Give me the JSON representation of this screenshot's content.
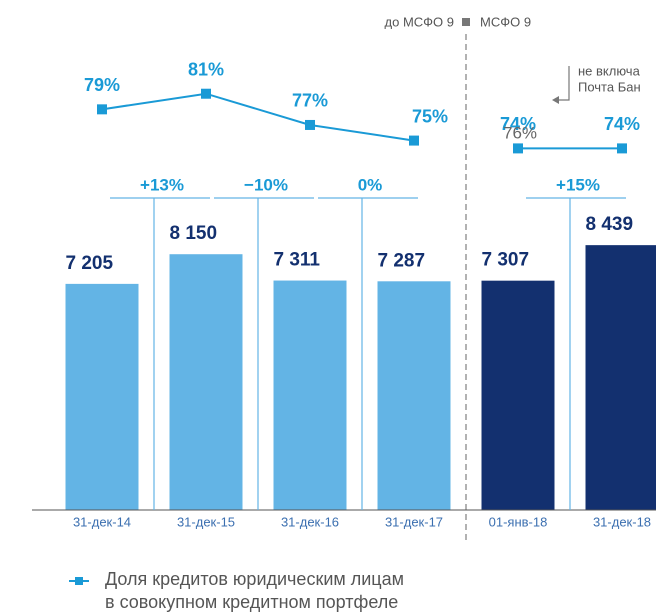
{
  "chart_data": {
    "type": "bar",
    "categories": [
      "31-дек-14",
      "31-дек-15",
      "31-дек-16",
      "31-дек-17",
      "01-янв-18",
      "31-дек-18"
    ],
    "values": [
      7205,
      8150,
      7311,
      7287,
      7307,
      8439
    ],
    "value_labels": [
      "7 205",
      "8 150",
      "7 311",
      "7 287",
      "7 307",
      "8 439"
    ],
    "colors": [
      "#63b4e5",
      "#63b4e5",
      "#63b4e5",
      "#63b4e5",
      "#13306f",
      "#13306f"
    ],
    "ylim": [
      0,
      16250
    ],
    "line_series": [
      {
        "values": [
          79,
          81,
          77,
          75,
          null,
          null
        ],
        "value_labels": [
          "79%",
          "81%",
          "77%",
          "75%",
          null,
          null
        ],
        "color": "#1a9ad6"
      },
      {
        "values": [
          null,
          null,
          null,
          null,
          74,
          74
        ],
        "value_labels": [
          null,
          null,
          null,
          null,
          "74%",
          "74%"
        ],
        "color": "#1a9ad6"
      }
    ],
    "y2lim": [
      27.7,
      93
    ],
    "changes": [
      {
        "from": 0,
        "to": 1,
        "label": "+13%"
      },
      {
        "from": 1,
        "to": 2,
        "label": "−10%"
      },
      {
        "from": 2,
        "to": 3,
        "label": "0%"
      },
      {
        "from": 4,
        "to": 5,
        "label": "+15%"
      }
    ],
    "periods": [
      "до МСФО 9",
      "МСФО 9"
    ],
    "annotation": {
      "value_label": "76%",
      "value": 76,
      "text": [
        "не включа",
        "Почта Бан"
      ]
    },
    "legend": [
      "Доля кредитов юридическим лицам",
      "в совокупном кредитном портфеле"
    ]
  }
}
